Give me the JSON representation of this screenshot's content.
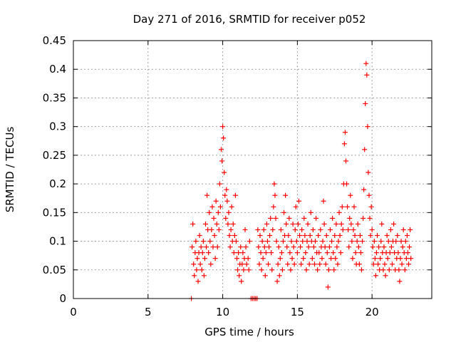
{
  "chart_data": {
    "type": "scatter",
    "title": "Day 271 of 2016, SRMTID for receiver p052",
    "xlabel": "GPS time / hours",
    "ylabel": "SRMTID / TECUs",
    "xlim": [
      0,
      24
    ],
    "ylim": [
      0,
      0.45
    ],
    "xticks": [
      0,
      5,
      10,
      15,
      20
    ],
    "xtick_labels": [
      "0",
      "5",
      "10",
      "15",
      "20"
    ],
    "yticks": [
      0,
      0.05,
      0.1,
      0.15,
      0.2,
      0.25,
      0.3,
      0.35,
      0.4,
      0.45
    ],
    "ytick_labels": [
      "0",
      "0.05",
      "0.1",
      "0.15",
      "0.2",
      "0.25",
      "0.3",
      "0.35",
      "0.4",
      "0.45"
    ],
    "grid": true,
    "marker": "+",
    "color": "#ff0000",
    "series": [
      {
        "name": "SRMTID",
        "points": [
          [
            7.9,
            0.0
          ],
          [
            7.95,
            0.09
          ],
          [
            8.0,
            0.13
          ],
          [
            8.05,
            0.06
          ],
          [
            8.1,
            0.04
          ],
          [
            8.15,
            0.08
          ],
          [
            8.2,
            0.1
          ],
          [
            8.25,
            0.05
          ],
          [
            8.3,
            0.07
          ],
          [
            8.35,
            0.03
          ],
          [
            8.4,
            0.08
          ],
          [
            8.45,
            0.11
          ],
          [
            8.5,
            0.06
          ],
          [
            8.55,
            0.09
          ],
          [
            8.6,
            0.05
          ],
          [
            8.65,
            0.08
          ],
          [
            8.7,
            0.1
          ],
          [
            8.75,
            0.04
          ],
          [
            8.8,
            0.07
          ],
          [
            8.85,
            0.13
          ],
          [
            8.9,
            0.09
          ],
          [
            8.95,
            0.18
          ],
          [
            9.0,
            0.12
          ],
          [
            9.05,
            0.08
          ],
          [
            9.1,
            0.15
          ],
          [
            9.15,
            0.1
          ],
          [
            9.2,
            0.06
          ],
          [
            9.25,
            0.12
          ],
          [
            9.3,
            0.16
          ],
          [
            9.35,
            0.09
          ],
          [
            9.4,
            0.14
          ],
          [
            9.45,
            0.11
          ],
          [
            9.5,
            0.07
          ],
          [
            9.55,
            0.17
          ],
          [
            9.6,
            0.13
          ],
          [
            9.65,
            0.09
          ],
          [
            9.7,
            0.15
          ],
          [
            9.75,
            0.12
          ],
          [
            9.8,
            0.2
          ],
          [
            9.85,
            0.16
          ],
          [
            9.9,
            0.26
          ],
          [
            9.95,
            0.24
          ],
          [
            10.0,
            0.3
          ],
          [
            10.05,
            0.28
          ],
          [
            10.1,
            0.22
          ],
          [
            10.15,
            0.18
          ],
          [
            10.2,
            0.14
          ],
          [
            10.25,
            0.19
          ],
          [
            10.3,
            0.17
          ],
          [
            10.35,
            0.13
          ],
          [
            10.4,
            0.15
          ],
          [
            10.45,
            0.11
          ],
          [
            10.5,
            0.09
          ],
          [
            10.55,
            0.12
          ],
          [
            10.6,
            0.16
          ],
          [
            10.65,
            0.1
          ],
          [
            10.7,
            0.13
          ],
          [
            10.75,
            0.08
          ],
          [
            10.8,
            0.11
          ],
          [
            10.85,
            0.18
          ],
          [
            10.9,
            0.1
          ],
          [
            10.95,
            0.07
          ],
          [
            11.0,
            0.05
          ],
          [
            11.05,
            0.08
          ],
          [
            11.1,
            0.04
          ],
          [
            11.15,
            0.06
          ],
          [
            11.2,
            0.09
          ],
          [
            11.25,
            0.03
          ],
          [
            11.3,
            0.06
          ],
          [
            11.35,
            0.08
          ],
          [
            11.4,
            0.05
          ],
          [
            11.45,
            0.07
          ],
          [
            11.5,
            0.12
          ],
          [
            11.55,
            0.09
          ],
          [
            11.6,
            0.06
          ],
          [
            11.7,
            0.07
          ],
          [
            11.75,
            0.05
          ],
          [
            11.8,
            0.1
          ],
          [
            11.9,
            0.0
          ],
          [
            12.0,
            0.0
          ],
          [
            12.1,
            0.0
          ],
          [
            12.2,
            0.0
          ],
          [
            12.3,
            0.0
          ],
          [
            12.35,
            0.12
          ],
          [
            12.4,
            0.09
          ],
          [
            12.45,
            0.06
          ],
          [
            12.5,
            0.11
          ],
          [
            12.55,
            0.08
          ],
          [
            12.6,
            0.05
          ],
          [
            12.65,
            0.1
          ],
          [
            12.7,
            0.07
          ],
          [
            12.75,
            0.12
          ],
          [
            12.8,
            0.09
          ],
          [
            12.85,
            0.04
          ],
          [
            12.9,
            0.08
          ],
          [
            12.95,
            0.13
          ],
          [
            13.0,
            0.1
          ],
          [
            13.05,
            0.06
          ],
          [
            13.1,
            0.09
          ],
          [
            13.15,
            0.11
          ],
          [
            13.2,
            0.14
          ],
          [
            13.25,
            0.08
          ],
          [
            13.3,
            0.05
          ],
          [
            13.35,
            0.12
          ],
          [
            13.4,
            0.16
          ],
          [
            13.45,
            0.2
          ],
          [
            13.5,
            0.18
          ],
          [
            13.55,
            0.14
          ],
          [
            13.6,
            0.1
          ],
          [
            13.65,
            0.03
          ],
          [
            13.7,
            0.06
          ],
          [
            13.75,
            0.09
          ],
          [
            13.8,
            0.04
          ],
          [
            13.85,
            0.07
          ],
          [
            13.9,
            0.12
          ],
          [
            13.95,
            0.08
          ],
          [
            14.0,
            0.05
          ],
          [
            14.05,
            0.1
          ],
          [
            14.1,
            0.15
          ],
          [
            14.15,
            0.11
          ],
          [
            14.2,
            0.18
          ],
          [
            14.25,
            0.13
          ],
          [
            14.3,
            0.09
          ],
          [
            14.35,
            0.06
          ],
          [
            14.4,
            0.11
          ],
          [
            14.45,
            0.14
          ],
          [
            14.5,
            0.08
          ],
          [
            14.55,
            0.05
          ],
          [
            14.6,
            0.1
          ],
          [
            14.65,
            0.07
          ],
          [
            14.7,
            0.13
          ],
          [
            14.75,
            0.09
          ],
          [
            14.8,
            0.06
          ],
          [
            14.85,
            0.12
          ],
          [
            14.9,
            0.16
          ],
          [
            14.95,
            0.1
          ],
          [
            15.0,
            0.08
          ],
          [
            15.05,
            0.13
          ],
          [
            15.1,
            0.17
          ],
          [
            15.15,
            0.11
          ],
          [
            15.2,
            0.09
          ],
          [
            15.25,
            0.06
          ],
          [
            15.3,
            0.12
          ],
          [
            15.35,
            0.1
          ],
          [
            15.4,
            0.07
          ],
          [
            15.45,
            0.14
          ],
          [
            15.5,
            0.11
          ],
          [
            15.55,
            0.08
          ],
          [
            15.6,
            0.05
          ],
          [
            15.65,
            0.1
          ],
          [
            15.7,
            0.13
          ],
          [
            15.75,
            0.09
          ],
          [
            15.8,
            0.06
          ],
          [
            15.85,
            0.11
          ],
          [
            15.9,
            0.15
          ],
          [
            15.95,
            0.1
          ],
          [
            16.0,
            0.07
          ],
          [
            16.05,
            0.12
          ],
          [
            16.1,
            0.09
          ],
          [
            16.15,
            0.06
          ],
          [
            16.2,
            0.1
          ],
          [
            16.25,
            0.14
          ],
          [
            16.3,
            0.08
          ],
          [
            16.35,
            0.05
          ],
          [
            16.4,
            0.11
          ],
          [
            16.45,
            0.08
          ],
          [
            16.5,
            0.06
          ],
          [
            16.55,
            0.12
          ],
          [
            16.6,
            0.09
          ],
          [
            16.65,
            0.07
          ],
          [
            16.7,
            0.1
          ],
          [
            16.75,
            0.17
          ],
          [
            16.8,
            0.13
          ],
          [
            16.85,
            0.09
          ],
          [
            16.9,
            0.06
          ],
          [
            16.95,
            0.11
          ],
          [
            17.0,
            0.08
          ],
          [
            17.05,
            0.02
          ],
          [
            17.1,
            0.05
          ],
          [
            17.15,
            0.09
          ],
          [
            17.2,
            0.12
          ],
          [
            17.25,
            0.07
          ],
          [
            17.3,
            0.1
          ],
          [
            17.35,
            0.14
          ],
          [
            17.4,
            0.08
          ],
          [
            17.45,
            0.05
          ],
          [
            17.5,
            0.11
          ],
          [
            17.55,
            0.07
          ],
          [
            17.6,
            0.13
          ],
          [
            17.65,
            0.09
          ],
          [
            17.7,
            0.06
          ],
          [
            17.75,
            0.1
          ],
          [
            17.8,
            0.15
          ],
          [
            17.85,
            0.11
          ],
          [
            17.9,
            0.08
          ],
          [
            17.95,
            0.13
          ],
          [
            18.0,
            0.16
          ],
          [
            18.05,
            0.12
          ],
          [
            18.1,
            0.2
          ],
          [
            18.15,
            0.27
          ],
          [
            18.2,
            0.29
          ],
          [
            18.25,
            0.24
          ],
          [
            18.3,
            0.2
          ],
          [
            18.35,
            0.16
          ],
          [
            18.4,
            0.12
          ],
          [
            18.45,
            0.09
          ],
          [
            18.5,
            0.14
          ],
          [
            18.55,
            0.18
          ],
          [
            18.6,
            0.13
          ],
          [
            18.65,
            0.1
          ],
          [
            18.7,
            0.07
          ],
          [
            18.75,
            0.12
          ],
          [
            18.8,
            0.16
          ],
          [
            18.85,
            0.11
          ],
          [
            18.9,
            0.08
          ],
          [
            18.95,
            0.06
          ],
          [
            19.0,
            0.1
          ],
          [
            19.05,
            0.13
          ],
          [
            19.1,
            0.09
          ],
          [
            19.15,
            0.06
          ],
          [
            19.2,
            0.11
          ],
          [
            19.25,
            0.08
          ],
          [
            19.3,
            0.05
          ],
          [
            19.35,
            0.1
          ],
          [
            19.4,
            0.14
          ],
          [
            19.45,
            0.19
          ],
          [
            19.5,
            0.26
          ],
          [
            19.55,
            0.34
          ],
          [
            19.6,
            0.41
          ],
          [
            19.65,
            0.39
          ],
          [
            19.7,
            0.3
          ],
          [
            19.75,
            0.22
          ],
          [
            19.8,
            0.18
          ],
          [
            19.85,
            0.14
          ],
          [
            19.9,
            0.11
          ],
          [
            19.95,
            0.16
          ],
          [
            20.0,
            0.12
          ],
          [
            20.05,
            0.09
          ],
          [
            20.1,
            0.06
          ],
          [
            20.15,
            0.1
          ],
          [
            20.2,
            0.07
          ],
          [
            20.25,
            0.04
          ],
          [
            20.3,
            0.08
          ],
          [
            20.35,
            0.11
          ],
          [
            20.4,
            0.06
          ],
          [
            20.45,
            0.09
          ],
          [
            20.5,
            0.05
          ],
          [
            20.55,
            0.07
          ],
          [
            20.6,
            0.1
          ],
          [
            20.65,
            0.13
          ],
          [
            20.7,
            0.08
          ],
          [
            20.75,
            0.05
          ],
          [
            20.8,
            0.09
          ],
          [
            20.85,
            0.06
          ],
          [
            20.9,
            0.04
          ],
          [
            20.95,
            0.08
          ],
          [
            21.0,
            0.11
          ],
          [
            21.05,
            0.07
          ],
          [
            21.1,
            0.1
          ],
          [
            21.15,
            0.05
          ],
          [
            21.2,
            0.08
          ],
          [
            21.25,
            0.12
          ],
          [
            21.3,
            0.09
          ],
          [
            21.35,
            0.06
          ],
          [
            21.4,
            0.1
          ],
          [
            21.45,
            0.13
          ],
          [
            21.5,
            0.08
          ],
          [
            21.55,
            0.05
          ],
          [
            21.6,
            0.1
          ],
          [
            21.65,
            0.07
          ],
          [
            21.7,
            0.11
          ],
          [
            21.75,
            0.08
          ],
          [
            21.8,
            0.05
          ],
          [
            21.85,
            0.03
          ],
          [
            21.9,
            0.07
          ],
          [
            21.95,
            0.1
          ],
          [
            22.0,
            0.06
          ],
          [
            22.05,
            0.09
          ],
          [
            22.1,
            0.12
          ],
          [
            22.15,
            0.08
          ],
          [
            22.2,
            0.05
          ],
          [
            22.25,
            0.1
          ],
          [
            22.3,
            0.07
          ],
          [
            22.35,
            0.11
          ],
          [
            22.4,
            0.08
          ],
          [
            22.45,
            0.06
          ],
          [
            22.5,
            0.09
          ],
          [
            22.55,
            0.12
          ],
          [
            22.6,
            0.07
          ]
        ]
      }
    ]
  }
}
